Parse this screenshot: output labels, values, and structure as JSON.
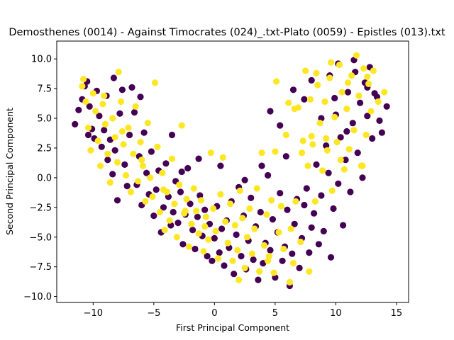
{
  "chart_data": {
    "type": "scatter",
    "title": "Demosthenes (0014) - Against Timocrates (024)_.txt-Plato (0059) - Epistles (013).txt",
    "xlabel": "First Principal Component",
    "ylabel": "Second Principal Component",
    "xlim": [
      -13.0,
      16.0
    ],
    "ylim": [
      -10.5,
      11.5
    ],
    "xticks": [
      -10,
      -5,
      0,
      5,
      10,
      15
    ],
    "xtick_labels": [
      "−10",
      "−5",
      "0",
      "5",
      "10",
      "15"
    ],
    "yticks": [
      -10.0,
      -7.5,
      -5.0,
      -2.5,
      0.0,
      2.5,
      5.0,
      7.5,
      10.0
    ],
    "ytick_labels": [
      "−10.0",
      "−7.5",
      "−5.0",
      "−2.5",
      "0.0",
      "2.5",
      "5.0",
      "7.5",
      "10.0"
    ],
    "grid": false,
    "legend": false,
    "series": [
      {
        "color": "#440154",
        "points": [
          [
            -11.5,
            4.5
          ],
          [
            -11.2,
            5.7
          ],
          [
            -10.9,
            6.6
          ],
          [
            -10.7,
            7.7
          ],
          [
            -10.5,
            8.1
          ],
          [
            -10.3,
            6.0
          ],
          [
            -10.1,
            4.1
          ],
          [
            -9.9,
            3.3
          ],
          [
            -9.7,
            7.3
          ],
          [
            -9.5,
            5.2
          ],
          [
            -9.3,
            2.6
          ],
          [
            -9.1,
            4.0
          ],
          [
            -8.9,
            6.9
          ],
          [
            -8.8,
            1.5
          ],
          [
            -8.6,
            3.2
          ],
          [
            -8.4,
            0.3
          ],
          [
            -8.2,
            2.3
          ],
          [
            -8.0,
            -1.9
          ],
          [
            -7.8,
            5.4
          ],
          [
            -7.6,
            7.4
          ],
          [
            -7.4,
            1.1
          ],
          [
            -7.2,
            -0.7
          ],
          [
            -7.0,
            3.6
          ],
          [
            -6.8,
            7.6
          ],
          [
            -6.6,
            5.5
          ],
          [
            -6.4,
            -0.6
          ],
          [
            -6.2,
            1.8
          ],
          [
            -6.0,
            -2.3
          ],
          [
            -5.8,
            3.8
          ],
          [
            -5.6,
            0.4
          ],
          [
            -5.4,
            -1.4
          ],
          [
            -5.2,
            2.2
          ],
          [
            -5.0,
            -3.2
          ],
          [
            -4.8,
            -1.0
          ],
          [
            -4.6,
            0.6
          ],
          [
            -4.4,
            -4.6
          ],
          [
            -4.2,
            -2.5
          ],
          [
            -4.0,
            1.2
          ],
          [
            -3.8,
            -1.6
          ],
          [
            -3.6,
            -4.0
          ],
          [
            -3.4,
            -2.9
          ],
          [
            -3.2,
            -0.3
          ],
          [
            -3.0,
            -3.8
          ],
          [
            -2.8,
            -1.2
          ],
          [
            -2.6,
            -5.6
          ],
          [
            -2.4,
            -3.1
          ],
          [
            -2.2,
            0.8
          ],
          [
            -2.0,
            -2.2
          ],
          [
            -1.8,
            -4.4
          ],
          [
            -1.6,
            -6.0
          ],
          [
            -1.4,
            -3.3
          ],
          [
            -1.2,
            -1.5
          ],
          [
            -1.0,
            -4.9
          ],
          [
            -0.8,
            -2.7
          ],
          [
            -0.6,
            -6.6
          ],
          [
            -0.4,
            -3.9
          ],
          [
            -0.2,
            -7.0
          ],
          [
            0.0,
            -5.1
          ],
          [
            0.2,
            -2.4
          ],
          [
            0.4,
            -6.3
          ],
          [
            0.6,
            -4.3
          ],
          [
            0.8,
            -7.4
          ],
          [
            1.0,
            -3.6
          ],
          [
            1.2,
            -5.9
          ],
          [
            1.4,
            -2.0
          ],
          [
            1.6,
            -8.1
          ],
          [
            1.8,
            -4.8
          ],
          [
            2.0,
            -0.8
          ],
          [
            2.2,
            -6.6
          ],
          [
            2.4,
            -3.2
          ],
          [
            2.6,
            -7.7
          ],
          [
            2.8,
            -5.3
          ],
          [
            3.0,
            -1.7
          ],
          [
            3.2,
            -6.9
          ],
          [
            3.4,
            -4.1
          ],
          [
            3.6,
            -8.6
          ],
          [
            3.8,
            -2.9
          ],
          [
            4.0,
            -7.2
          ],
          [
            4.2,
            -5.5
          ],
          [
            4.4,
            0.2
          ],
          [
            4.6,
            -6.1
          ],
          [
            4.8,
            -3.5
          ],
          [
            5.0,
            -8.4
          ],
          [
            5.2,
            -4.6
          ],
          [
            5.4,
            -1.3
          ],
          [
            5.6,
            -7.0
          ],
          [
            5.8,
            -5.8
          ],
          [
            6.0,
            -2.7
          ],
          [
            6.2,
            -9.1
          ],
          [
            6.4,
            -6.4
          ],
          [
            6.6,
            -3.9
          ],
          [
            6.8,
            -1.8
          ],
          [
            7.0,
            -7.6
          ],
          [
            7.2,
            -5.1
          ],
          [
            7.4,
            -2.3
          ],
          [
            7.6,
            -0.9
          ],
          [
            7.8,
            -6.3
          ],
          [
            8.0,
            -4.2
          ],
          [
            8.2,
            -3.0
          ],
          [
            8.4,
            1.1
          ],
          [
            8.6,
            -5.6
          ],
          [
            8.8,
            -1.5
          ],
          [
            9.0,
            -4.5
          ],
          [
            9.2,
            2.7
          ],
          [
            9.4,
            0.4
          ],
          [
            9.6,
            -6.7
          ],
          [
            9.8,
            -2.6
          ],
          [
            10.0,
            5.3
          ],
          [
            10.2,
            -0.5
          ],
          [
            10.4,
            3.4
          ],
          [
            10.6,
            -4.0
          ],
          [
            10.8,
            1.5
          ],
          [
            11.0,
            7.2
          ],
          [
            11.2,
            -1.2
          ],
          [
            11.4,
            4.6
          ],
          [
            11.6,
            8.9
          ],
          [
            11.8,
            2.1
          ],
          [
            12.0,
            6.3
          ],
          [
            12.2,
            0.0
          ],
          [
            12.4,
            8.0
          ],
          [
            12.6,
            5.2
          ],
          [
            12.8,
            9.3
          ],
          [
            13.0,
            3.3
          ],
          [
            13.2,
            7.1
          ],
          [
            13.4,
            6.8
          ],
          [
            13.6,
            4.8
          ],
          [
            13.8,
            3.8
          ],
          [
            14.2,
            6.0
          ],
          [
            6.5,
            7.4
          ],
          [
            7.4,
            6.6
          ],
          [
            8.0,
            8.2
          ],
          [
            8.8,
            5.0
          ],
          [
            9.5,
            8.6
          ],
          [
            10.2,
            9.6
          ],
          [
            11.5,
            9.9
          ],
          [
            12.6,
            7.6
          ],
          [
            5.4,
            4.4
          ],
          [
            4.6,
            5.6
          ],
          [
            9.9,
            6.7
          ],
          [
            10.9,
            3.9
          ],
          [
            -3.5,
            3.6
          ],
          [
            -6.1,
            6.8
          ],
          [
            -8.3,
            8.4
          ],
          [
            -10.4,
            3.6
          ],
          [
            -2.7,
            0.5
          ],
          [
            -1.3,
            1.6
          ],
          [
            0.5,
            1.0
          ],
          [
            2.5,
            -0.2
          ],
          [
            3.9,
            1.0
          ],
          [
            5.9,
            1.8
          ]
        ]
      },
      {
        "color": "#fde725",
        "points": [
          [
            -10.8,
            8.3
          ],
          [
            -10.6,
            6.4
          ],
          [
            -10.4,
            4.2
          ],
          [
            -10.2,
            2.3
          ],
          [
            -10.0,
            7.1
          ],
          [
            -9.8,
            5.6
          ],
          [
            -9.6,
            3.1
          ],
          [
            -9.4,
            1.0
          ],
          [
            -9.2,
            6.2
          ],
          [
            -9.0,
            4.5
          ],
          [
            -8.8,
            2.0
          ],
          [
            -8.6,
            -0.4
          ],
          [
            -8.4,
            5.0
          ],
          [
            -8.2,
            3.4
          ],
          [
            -8.0,
            1.3
          ],
          [
            -7.9,
            8.9
          ],
          [
            -7.7,
            6.4
          ],
          [
            -7.5,
            2.8
          ],
          [
            -7.3,
            0.2
          ],
          [
            -7.1,
            4.2
          ],
          [
            -6.9,
            -1.2
          ],
          [
            -6.7,
            2.0
          ],
          [
            -6.5,
            6.0
          ],
          [
            -6.3,
            -0.3
          ],
          [
            -6.1,
            3.0
          ],
          [
            -5.9,
            1.0
          ],
          [
            -5.7,
            -2.0
          ],
          [
            -5.5,
            4.6
          ],
          [
            -5.3,
            0.0
          ],
          [
            -5.1,
            -1.6
          ],
          [
            -4.9,
            8.0
          ],
          [
            -4.7,
            2.6
          ],
          [
            -4.5,
            -2.9
          ],
          [
            -4.3,
            0.4
          ],
          [
            -4.1,
            -4.4
          ],
          [
            -3.9,
            -1.2
          ],
          [
            -3.7,
            -3.6
          ],
          [
            -3.5,
            1.6
          ],
          [
            -3.3,
            -2.2
          ],
          [
            -3.1,
            -5.0
          ],
          [
            -2.9,
            -0.6
          ],
          [
            -2.7,
            4.4
          ],
          [
            -2.5,
            -3.0
          ],
          [
            -2.3,
            -1.8
          ],
          [
            -2.1,
            -5.8
          ],
          [
            -1.9,
            -3.9
          ],
          [
            -1.7,
            -0.9
          ],
          [
            -1.5,
            -2.8
          ],
          [
            -1.3,
            -4.7
          ],
          [
            -1.1,
            -1.9
          ],
          [
            -0.9,
            -6.2
          ],
          [
            -0.7,
            -3.3
          ],
          [
            -0.5,
            -5.2
          ],
          [
            -0.3,
            2.1
          ],
          [
            -0.1,
            -2.6
          ],
          [
            0.1,
            -4.5
          ],
          [
            0.3,
            -6.8
          ],
          [
            0.5,
            -1.4
          ],
          [
            0.7,
            1.7
          ],
          [
            0.9,
            -3.7
          ],
          [
            1.1,
            -5.5
          ],
          [
            1.3,
            -2.2
          ],
          [
            1.5,
            -7.0
          ],
          [
            1.7,
            -4.0
          ],
          [
            1.9,
            -6.1
          ],
          [
            2.1,
            -1.1
          ],
          [
            2.3,
            -3.4
          ],
          [
            2.5,
            -7.6
          ],
          [
            2.7,
            -5.0
          ],
          [
            2.9,
            -2.6
          ],
          [
            3.1,
            -6.4
          ],
          [
            3.3,
            -4.3
          ],
          [
            3.5,
            -0.9
          ],
          [
            3.7,
            -7.9
          ],
          [
            3.9,
            2.1
          ],
          [
            4.1,
            -5.7
          ],
          [
            4.3,
            -3.1
          ],
          [
            4.5,
            -6.6
          ],
          [
            4.7,
            -1.9
          ],
          [
            4.9,
            -8.0
          ],
          [
            5.1,
            8.1
          ],
          [
            5.3,
            -4.6
          ],
          [
            5.5,
            -2.4
          ],
          [
            5.7,
            -6.0
          ],
          [
            5.9,
            3.6
          ],
          [
            6.1,
            6.3
          ],
          [
            6.3,
            -4.3
          ],
          [
            6.5,
            -7.2
          ],
          [
            6.7,
            -2.0
          ],
          [
            6.9,
            5.9
          ],
          [
            7.1,
            -5.4
          ],
          [
            7.3,
            3.1
          ],
          [
            7.5,
            9.0
          ],
          [
            7.7,
            1.0
          ],
          [
            7.9,
            6.6
          ],
          [
            8.1,
            2.8
          ],
          [
            8.3,
            -2.0
          ],
          [
            8.5,
            7.8
          ],
          [
            8.7,
            4.6
          ],
          [
            8.9,
            0.6
          ],
          [
            9.1,
            6.4
          ],
          [
            9.3,
            2.3
          ],
          [
            9.5,
            8.4
          ],
          [
            9.7,
            -1.1
          ],
          [
            9.9,
            5.1
          ],
          [
            10.1,
            3.0
          ],
          [
            10.3,
            9.5
          ],
          [
            10.5,
            7.2
          ],
          [
            10.7,
            0.7
          ],
          [
            10.9,
            5.8
          ],
          [
            11.1,
            2.4
          ],
          [
            11.3,
            8.6
          ],
          [
            11.5,
            4.0
          ],
          [
            11.7,
            10.3
          ],
          [
            11.9,
            6.9
          ],
          [
            12.1,
            1.0
          ],
          [
            12.3,
            9.2
          ],
          [
            12.5,
            3.6
          ],
          [
            12.7,
            7.9
          ],
          [
            12.9,
            5.6
          ],
          [
            13.1,
            9.0
          ],
          [
            13.5,
            6.4
          ],
          [
            14.0,
            7.2
          ],
          [
            7.8,
            -7.9
          ],
          [
            6.2,
            -8.8
          ],
          [
            4.4,
            -7.0
          ],
          [
            2.0,
            -8.6
          ],
          [
            -0.8,
            -4.1
          ],
          [
            -2.4,
            -2.8
          ],
          [
            -4.2,
            -1.0
          ],
          [
            -6.0,
            1.5
          ],
          [
            -7.6,
            3.9
          ],
          [
            -9.1,
            6.9
          ],
          [
            -10.9,
            7.7
          ],
          [
            5.0,
            2.2
          ],
          [
            7.2,
            2.1
          ],
          [
            8.0,
            3.5
          ],
          [
            9.2,
            3.3
          ],
          [
            10.4,
            1.5
          ],
          [
            12.2,
            1.0
          ],
          [
            6.6,
            5.8
          ],
          [
            8.4,
            8.8
          ],
          [
            9.6,
            9.7
          ],
          [
            11.0,
            8.0
          ],
          [
            12.6,
            8.5
          ]
        ]
      }
    ]
  }
}
